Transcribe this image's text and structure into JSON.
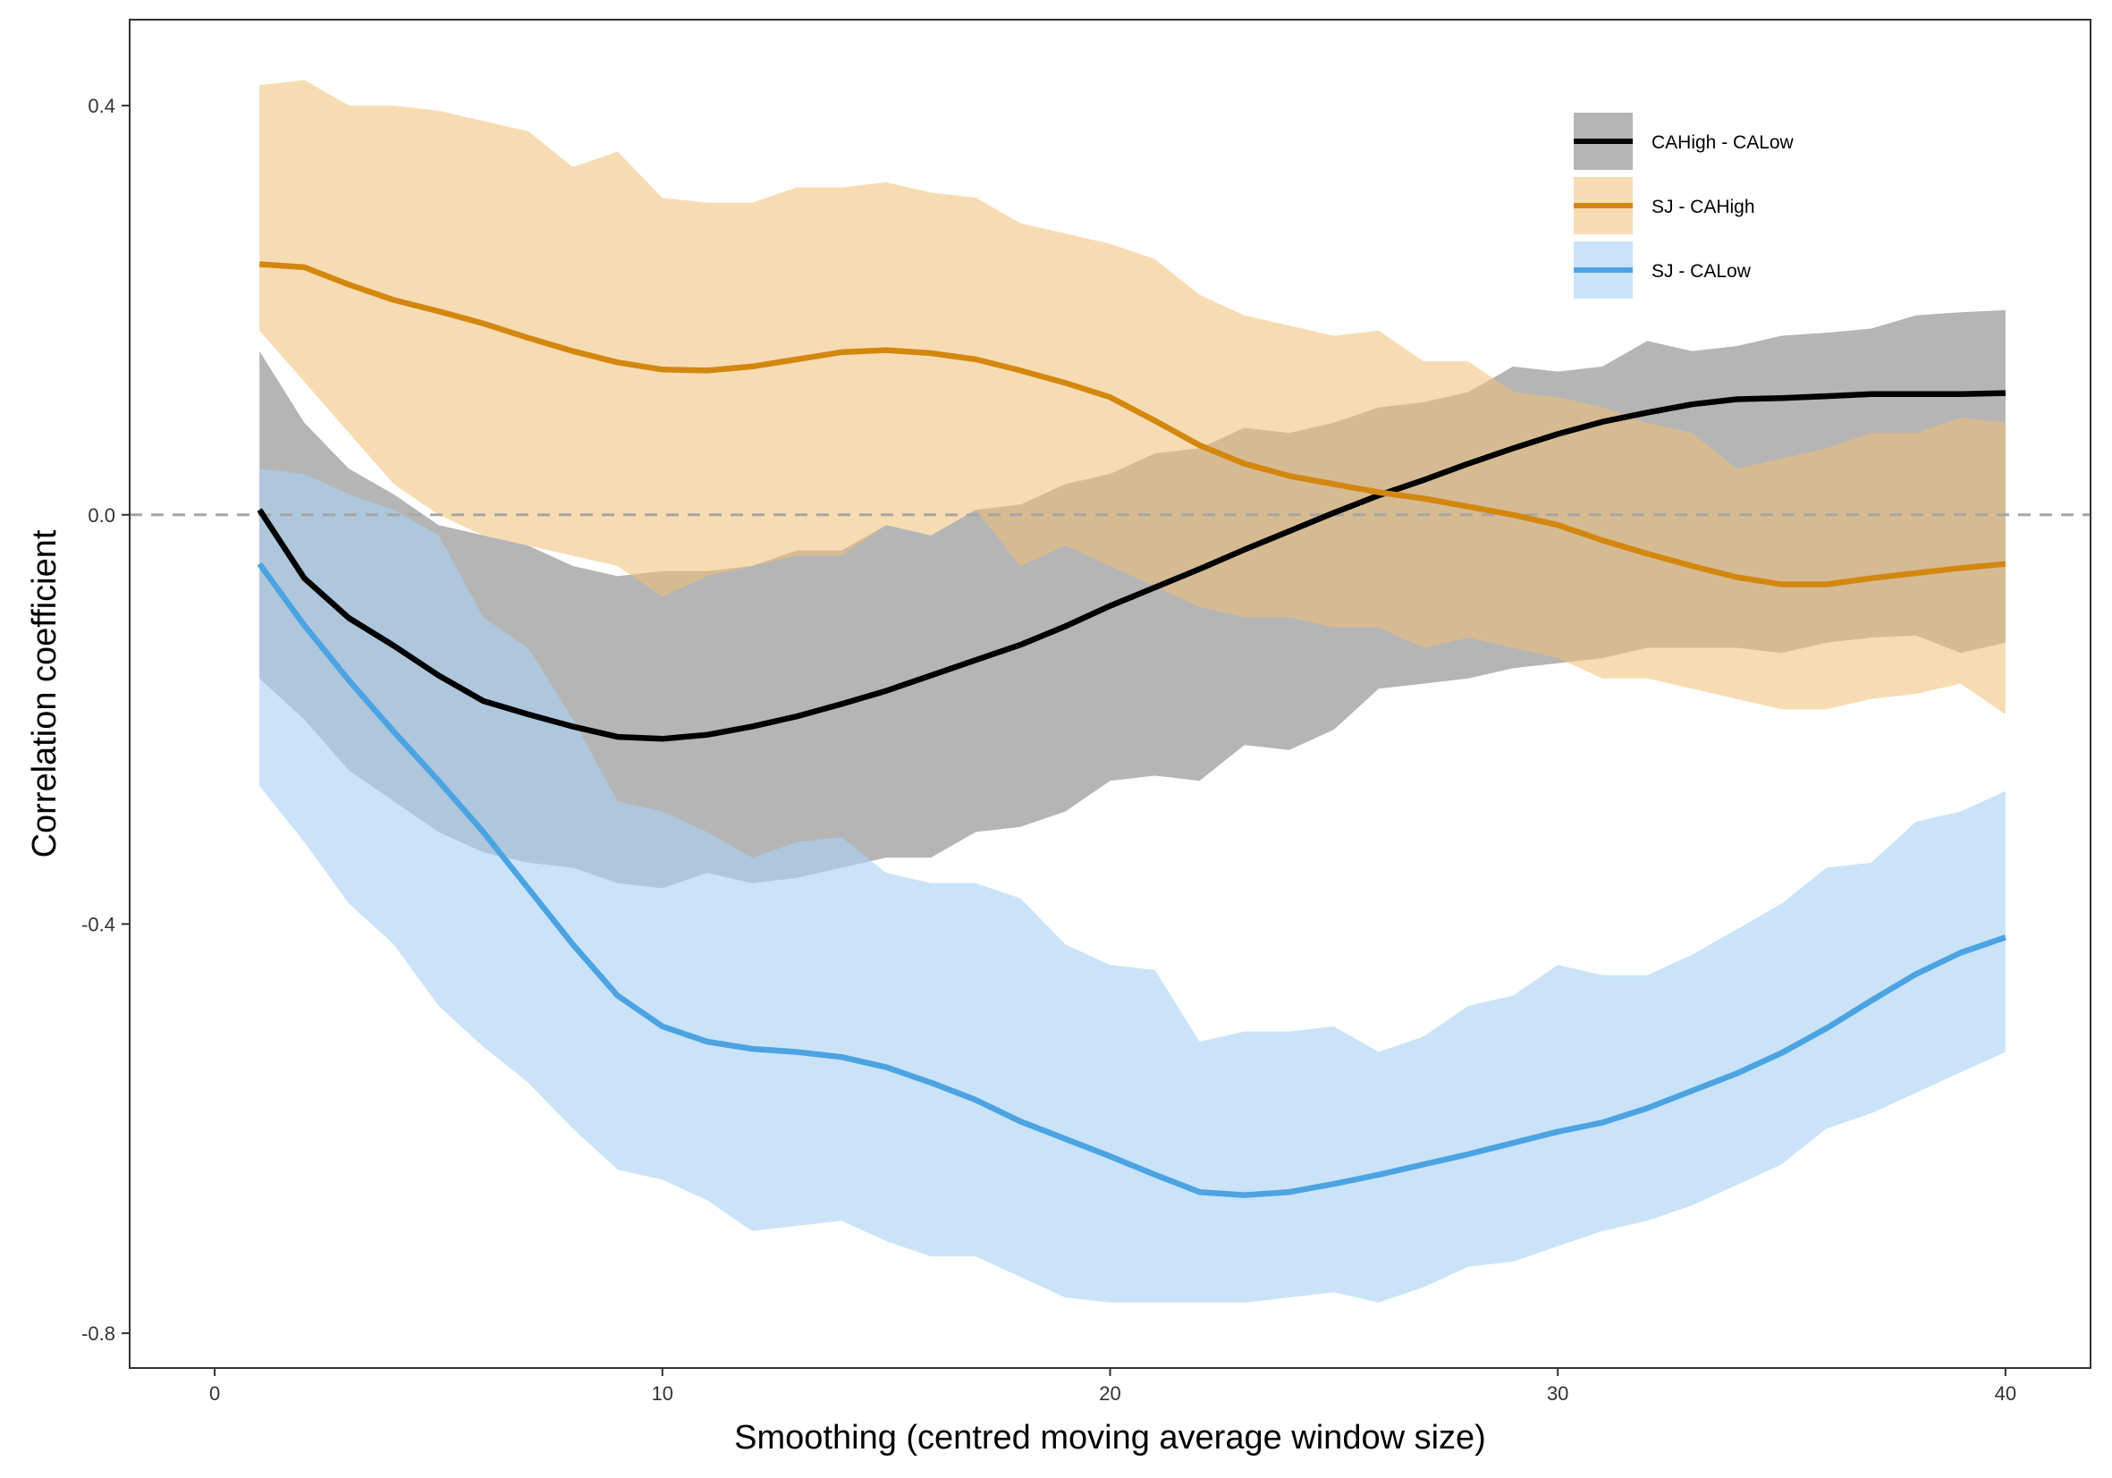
{
  "chart_data": {
    "type": "line",
    "xlabel": "Smoothing (centred moving average window size)",
    "ylabel": "Correlation coefficient",
    "xlim": [
      -1.9,
      41.9
    ],
    "ylim": [
      -0.834,
      0.484
    ],
    "xticks": [
      0,
      10,
      20,
      30,
      40
    ],
    "xtick_labels": [
      "0",
      "10",
      "20",
      "30",
      "40"
    ],
    "yticks": [
      -0.8,
      -0.4,
      0.0,
      0.4
    ],
    "ytick_labels": [
      "-0.8",
      "-0.4",
      "0.0",
      "0.4"
    ],
    "reference_line": {
      "y": 0,
      "style": "dashed"
    },
    "grid": false,
    "legend_position": "top-right",
    "x": [
      1,
      2,
      3,
      4,
      5,
      6,
      7,
      8,
      9,
      10,
      11,
      12,
      13,
      14,
      15,
      16,
      17,
      18,
      19,
      20,
      21,
      22,
      23,
      24,
      25,
      26,
      27,
      28,
      29,
      30,
      31,
      32,
      33,
      34,
      35,
      36,
      37,
      38,
      39,
      40
    ],
    "series": [
      {
        "name": "CAHigh - CALow",
        "color": "#000000",
        "fill": "#7f7f7f",
        "fill_opacity": 0.58,
        "values": [
          0.005,
          -0.062,
          -0.101,
          -0.128,
          -0.157,
          -0.182,
          -0.195,
          -0.207,
          -0.217,
          -0.219,
          -0.215,
          -0.207,
          -0.197,
          -0.185,
          -0.172,
          -0.157,
          -0.142,
          -0.127,
          -0.109,
          -0.089,
          -0.071,
          -0.053,
          -0.034,
          -0.016,
          0.002,
          0.019,
          0.034,
          0.05,
          0.065,
          0.079,
          0.091,
          0.1,
          0.108,
          0.113,
          0.114,
          0.116,
          0.118,
          0.118,
          0.118,
          0.119
        ],
        "lower": [
          -0.16,
          -0.2,
          -0.25,
          -0.28,
          -0.31,
          -0.33,
          -0.34,
          -0.345,
          -0.36,
          -0.365,
          -0.35,
          -0.36,
          -0.355,
          -0.345,
          -0.335,
          -0.335,
          -0.31,
          -0.305,
          -0.29,
          -0.26,
          -0.255,
          -0.26,
          -0.225,
          -0.23,
          -0.21,
          -0.17,
          -0.165,
          -0.16,
          -0.15,
          -0.145,
          -0.14,
          -0.13,
          -0.13,
          -0.13,
          -0.135,
          -0.125,
          -0.12,
          -0.118,
          -0.135,
          -0.125
        ],
        "upper": [
          0.16,
          0.09,
          0.045,
          0.02,
          -0.01,
          -0.02,
          -0.03,
          -0.05,
          -0.06,
          -0.055,
          -0.055,
          -0.05,
          -0.035,
          -0.035,
          -0.01,
          -0.02,
          0.005,
          0.01,
          0.03,
          0.04,
          0.06,
          0.065,
          0.085,
          0.08,
          0.09,
          0.105,
          0.11,
          0.12,
          0.145,
          0.14,
          0.145,
          0.17,
          0.16,
          0.165,
          0.175,
          0.178,
          0.182,
          0.195,
          0.198,
          0.2
        ]
      },
      {
        "name": "SJ - CAHigh",
        "color": "#d4870f",
        "fill": "#f0c074",
        "fill_opacity": 0.55,
        "values": [
          0.245,
          0.242,
          0.225,
          0.21,
          0.199,
          0.187,
          0.173,
          0.16,
          0.149,
          0.142,
          0.141,
          0.145,
          0.152,
          0.159,
          0.161,
          0.158,
          0.152,
          0.141,
          0.129,
          0.115,
          0.092,
          0.068,
          0.05,
          0.038,
          0.03,
          0.022,
          0.016,
          0.008,
          0.0,
          -0.01,
          -0.025,
          -0.038,
          -0.05,
          -0.061,
          -0.068,
          -0.068,
          -0.062,
          -0.057,
          -0.052,
          -0.048
        ],
        "lower": [
          0.18,
          0.13,
          0.08,
          0.03,
          0.0,
          -0.02,
          -0.03,
          -0.04,
          -0.05,
          -0.08,
          -0.06,
          -0.05,
          -0.04,
          -0.04,
          -0.01,
          -0.02,
          0.005,
          -0.05,
          -0.03,
          -0.05,
          -0.07,
          -0.09,
          -0.1,
          -0.1,
          -0.11,
          -0.11,
          -0.13,
          -0.12,
          -0.13,
          -0.14,
          -0.16,
          -0.16,
          -0.17,
          -0.18,
          -0.19,
          -0.19,
          -0.18,
          -0.175,
          -0.165,
          -0.195
        ],
        "upper": [
          0.42,
          0.425,
          0.4,
          0.4,
          0.395,
          0.385,
          0.375,
          0.34,
          0.355,
          0.31,
          0.305,
          0.305,
          0.32,
          0.32,
          0.325,
          0.315,
          0.31,
          0.285,
          0.275,
          0.265,
          0.25,
          0.215,
          0.195,
          0.185,
          0.175,
          0.18,
          0.15,
          0.15,
          0.12,
          0.115,
          0.105,
          0.09,
          0.08,
          0.045,
          0.055,
          0.065,
          0.08,
          0.08,
          0.095,
          0.09
        ]
      },
      {
        "name": "SJ - CALow",
        "color": "#4ba3e2",
        "fill": "#a9d2f4",
        "fill_opacity": 0.62,
        "values": [
          -0.048,
          -0.108,
          -0.162,
          -0.212,
          -0.26,
          -0.31,
          -0.365,
          -0.42,
          -0.47,
          -0.5,
          -0.515,
          -0.522,
          -0.525,
          -0.53,
          -0.54,
          -0.555,
          -0.572,
          -0.593,
          -0.61,
          -0.627,
          -0.645,
          -0.662,
          -0.665,
          -0.662,
          -0.654,
          -0.645,
          -0.635,
          -0.625,
          -0.614,
          -0.603,
          -0.594,
          -0.58,
          -0.563,
          -0.546,
          -0.526,
          -0.502,
          -0.475,
          -0.449,
          -0.428,
          -0.413
        ],
        "lower": [
          -0.265,
          -0.32,
          -0.38,
          -0.42,
          -0.48,
          -0.52,
          -0.555,
          -0.6,
          -0.64,
          -0.65,
          -0.67,
          -0.7,
          -0.695,
          -0.69,
          -0.71,
          -0.725,
          -0.725,
          -0.745,
          -0.765,
          -0.77,
          -0.77,
          -0.77,
          -0.77,
          -0.765,
          -0.76,
          -0.77,
          -0.755,
          -0.735,
          -0.73,
          -0.715,
          -0.7,
          -0.69,
          -0.675,
          -0.655,
          -0.635,
          -0.6,
          -0.585,
          -0.565,
          -0.545,
          -0.525
        ],
        "upper": [
          0.045,
          0.04,
          0.02,
          0.005,
          -0.02,
          -0.1,
          -0.13,
          -0.2,
          -0.28,
          -0.29,
          -0.31,
          -0.335,
          -0.32,
          -0.315,
          -0.35,
          -0.36,
          -0.36,
          -0.375,
          -0.42,
          -0.44,
          -0.445,
          -0.515,
          -0.505,
          -0.505,
          -0.5,
          -0.525,
          -0.51,
          -0.48,
          -0.47,
          -0.44,
          -0.45,
          -0.45,
          -0.43,
          -0.405,
          -0.38,
          -0.345,
          -0.34,
          -0.3,
          -0.29,
          -0.27
        ]
      }
    ]
  }
}
